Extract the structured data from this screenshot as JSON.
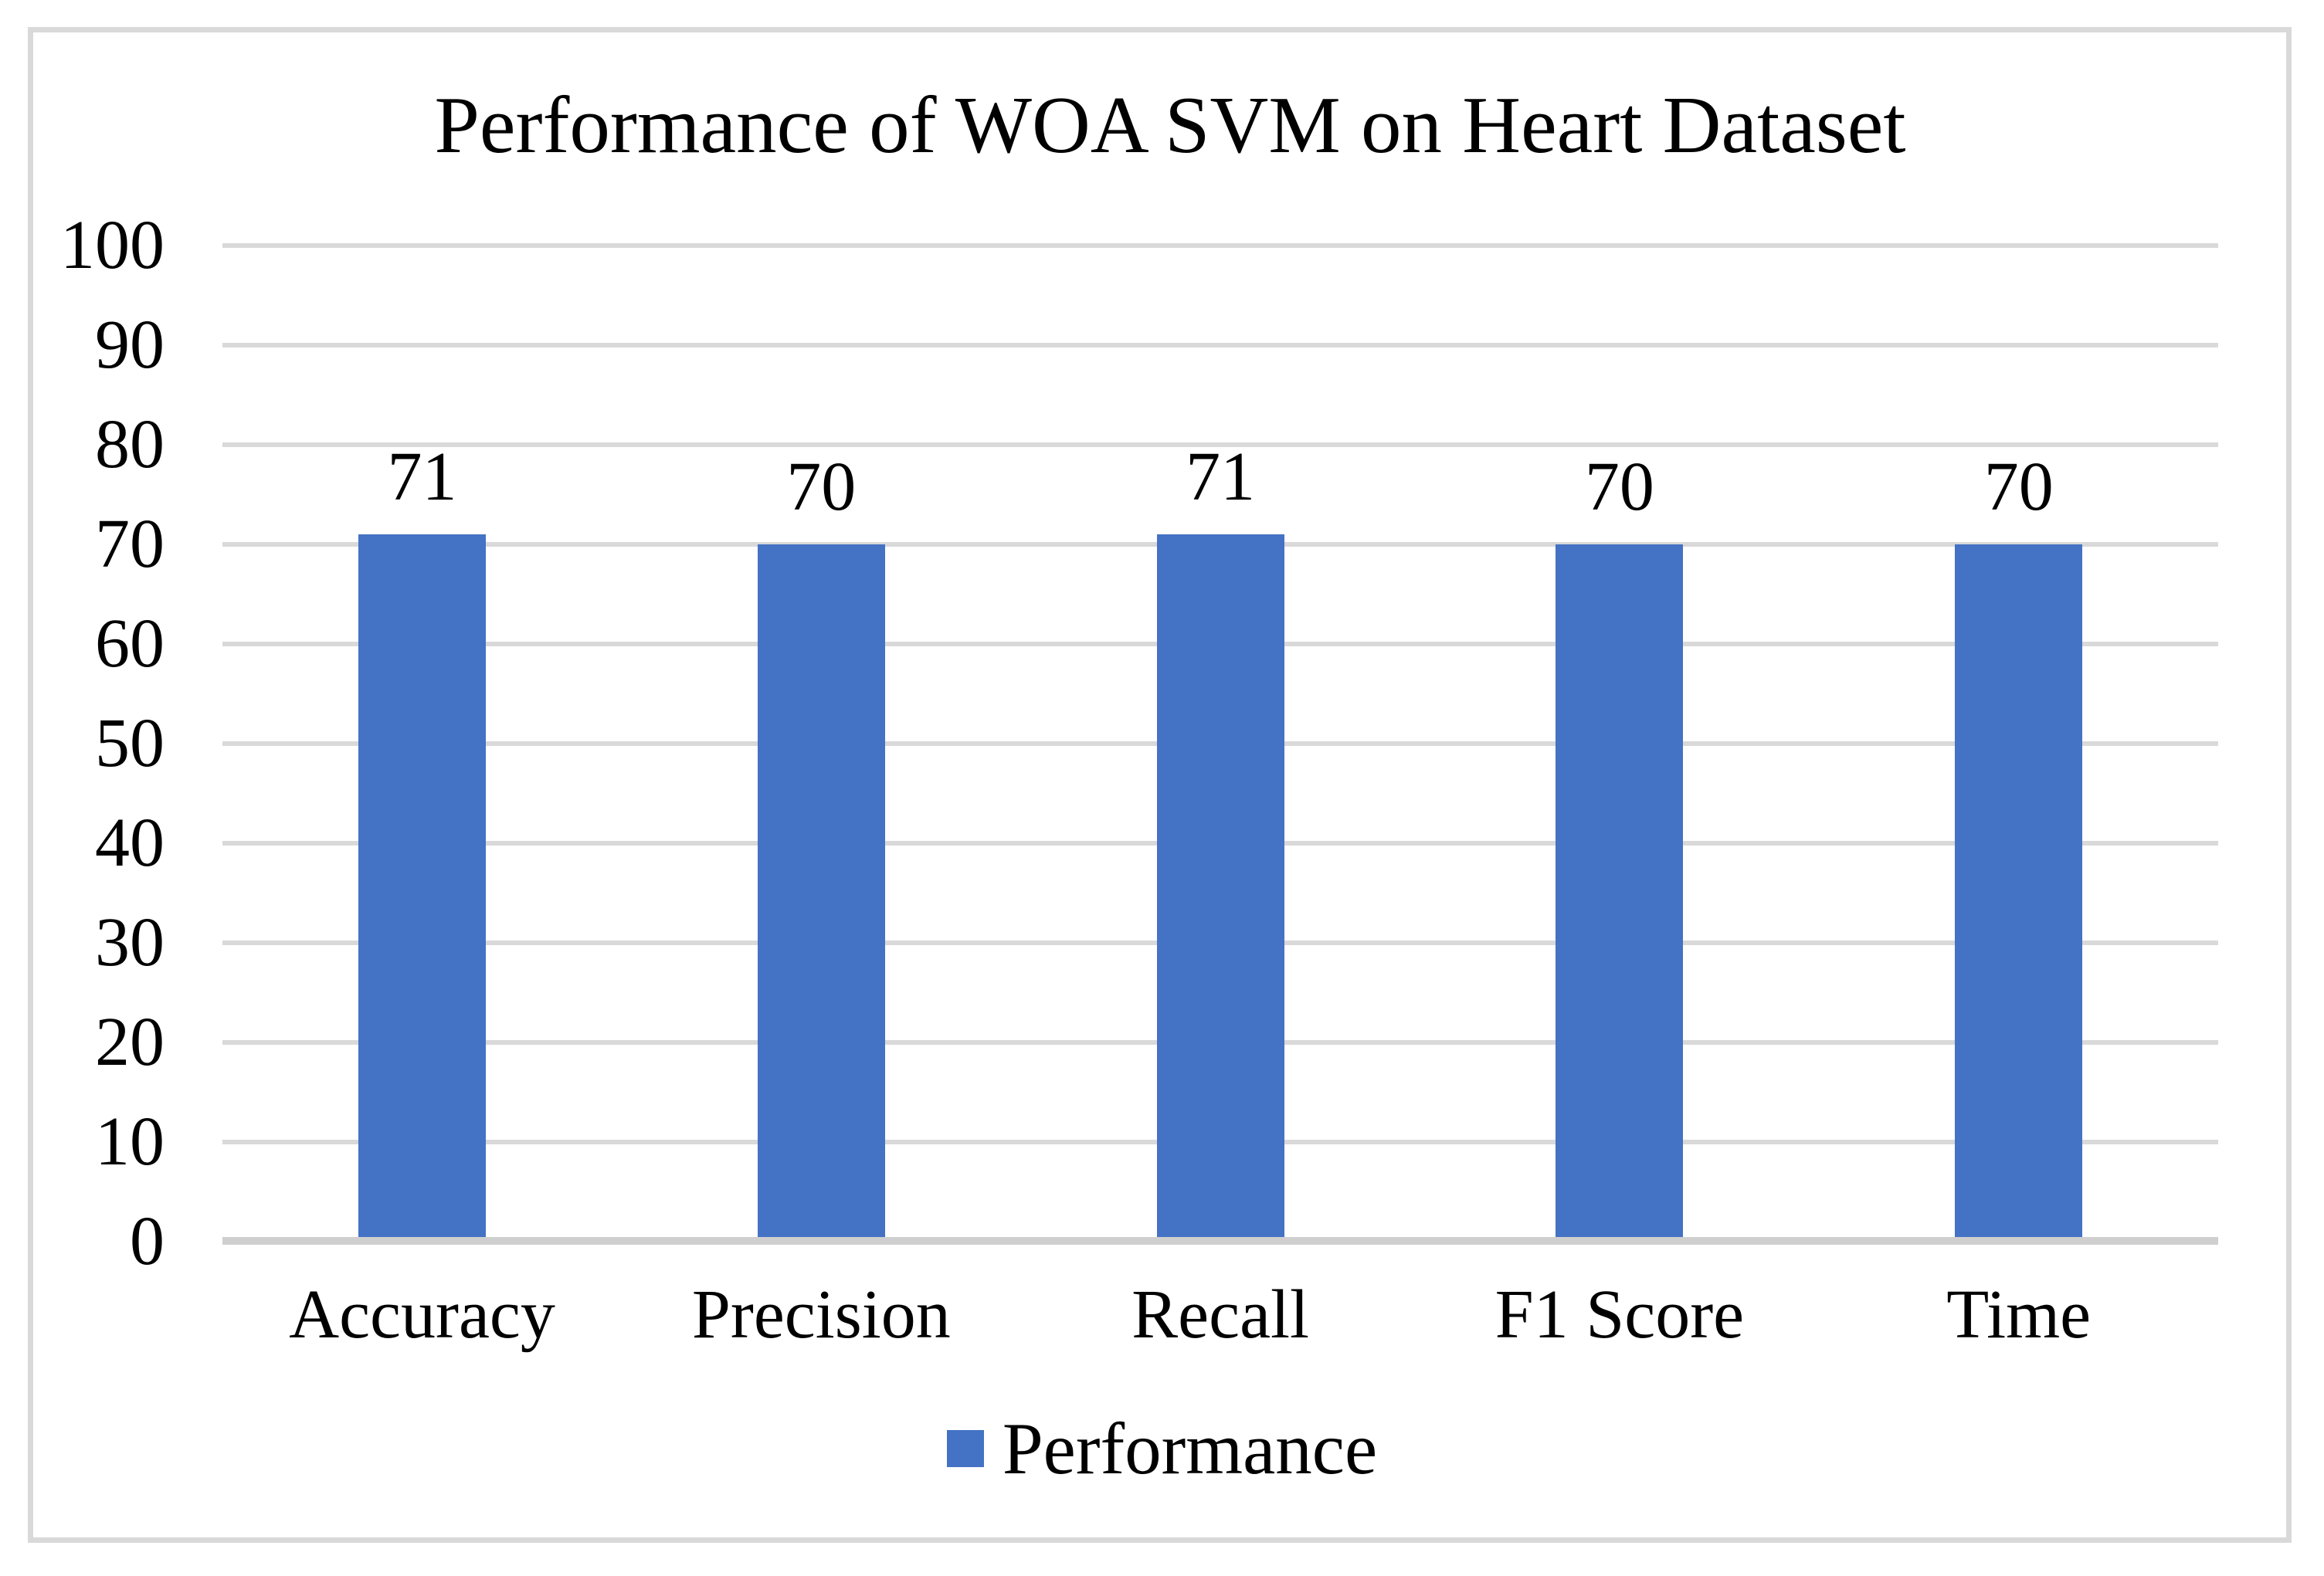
{
  "chart_data": {
    "type": "bar",
    "title": "Performance of WOA SVM on Heart Dataset",
    "categories": [
      "Accuracy",
      "Precision",
      "Recall",
      "F1 Score",
      "Time"
    ],
    "series": [
      {
        "name": "Performance",
        "values": [
          71,
          70,
          71,
          70,
          70
        ]
      }
    ],
    "data_labels": [
      "71",
      "70",
      "71",
      "70",
      "70"
    ],
    "xlabel": "",
    "ylabel": "",
    "ylim": [
      0,
      100
    ],
    "yticks": [
      0,
      10,
      20,
      30,
      40,
      50,
      60,
      70,
      80,
      90,
      100
    ],
    "grid": "horizontal",
    "legend_position": "bottom",
    "colors": {
      "bar": "#4472C4",
      "gridline": "#D9D9D9",
      "axis_line": "#CFCFCF",
      "frame_border": "#D9D9D9",
      "text": "#000000",
      "background": "#FFFFFF"
    }
  }
}
